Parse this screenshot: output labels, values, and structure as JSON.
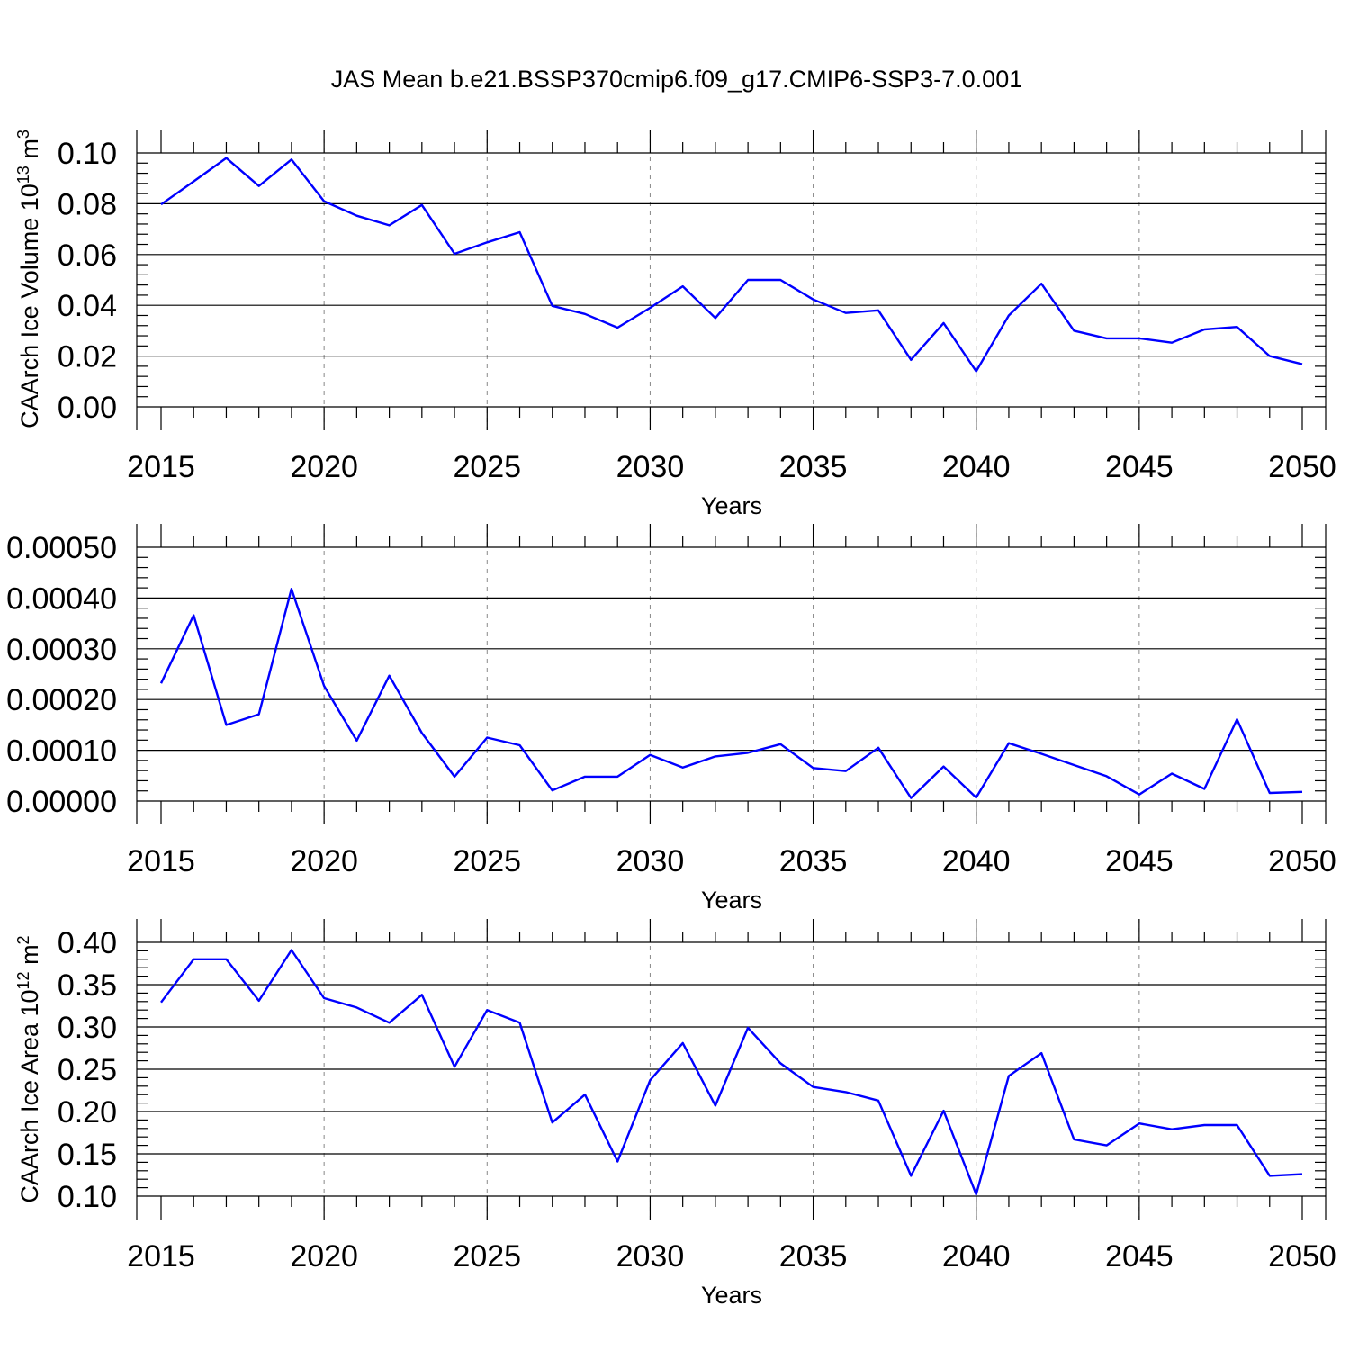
{
  "title": "JAS Mean b.e21.BSSP370cmip6.f09_g17.CMIP6-SSP3-7.0.001",
  "line_color": "#0000ff",
  "chart_data": [
    {
      "type": "line",
      "xlabel": "Years",
      "ylabel": "CAArch Ice Volume 10",
      "ylabel_exp": "13",
      "ylabel_unit": " m",
      "ylabel_unit_exp": "3",
      "xlim": [
        2015,
        2050
      ],
      "ylim": [
        0.0,
        0.1
      ],
      "x_ticks": [
        2015,
        2020,
        2025,
        2030,
        2035,
        2040,
        2045,
        2050
      ],
      "x_tick_labels": [
        "2015",
        "2020",
        "2025",
        "2030",
        "2035",
        "2040",
        "2045",
        "2050"
      ],
      "y_ticks": [
        0.0,
        0.02,
        0.04,
        0.06,
        0.08,
        0.1
      ],
      "y_tick_labels": [
        "0.00",
        "0.02",
        "0.04",
        "0.06",
        "0.08",
        "0.10"
      ],
      "x": [
        2015,
        2016,
        2017,
        2018,
        2019,
        2020,
        2021,
        2022,
        2023,
        2024,
        2025,
        2026,
        2027,
        2028,
        2029,
        2030,
        2031,
        2032,
        2033,
        2034,
        2035,
        2036,
        2037,
        2038,
        2039,
        2040,
        2041,
        2042,
        2043,
        2044,
        2045,
        2046,
        2047,
        2048,
        2049,
        2050
      ],
      "values": [
        0.0797,
        0.0888,
        0.098,
        0.087,
        0.0974,
        0.081,
        0.0753,
        0.0715,
        0.0795,
        0.0603,
        0.0648,
        0.0688,
        0.0398,
        0.0366,
        0.0312,
        0.039,
        0.0475,
        0.035,
        0.05,
        0.05,
        0.0423,
        0.037,
        0.038,
        0.0185,
        0.033,
        0.014,
        0.036,
        0.0485,
        0.03,
        0.027,
        0.027,
        0.0253,
        0.0305,
        0.0315,
        0.02,
        0.0168
      ],
      "grid": "vertical dashed"
    },
    {
      "type": "line",
      "xlabel": "Years",
      "ylabel": "",
      "xlim": [
        2015,
        2050
      ],
      "ylim": [
        0.0,
        0.0005
      ],
      "x_ticks": [
        2015,
        2020,
        2025,
        2030,
        2035,
        2040,
        2045,
        2050
      ],
      "x_tick_labels": [
        "2015",
        "2020",
        "2025",
        "2030",
        "2035",
        "2040",
        "2045",
        "2050"
      ],
      "y_ticks": [
        0.0,
        0.0001,
        0.0002,
        0.0003,
        0.0004,
        0.0005
      ],
      "y_tick_labels": [
        "0.00000",
        "0.00010",
        "0.00020",
        "0.00030",
        "0.00040",
        "0.00050"
      ],
      "x": [
        2015,
        2016,
        2017,
        2018,
        2019,
        2020,
        2021,
        2022,
        2023,
        2024,
        2025,
        2026,
        2027,
        2028,
        2029,
        2030,
        2031,
        2032,
        2033,
        2034,
        2035,
        2036,
        2037,
        2038,
        2039,
        2040,
        2041,
        2042,
        2043,
        2044,
        2045,
        2046,
        2047,
        2048,
        2049,
        2050
      ],
      "values": [
        0.000232,
        0.000366,
        0.00015,
        0.000171,
        0.000418,
        0.000227,
        0.000119,
        0.000247,
        0.000134,
        4.8e-05,
        0.000125,
        0.00011,
        2.1e-05,
        4.8e-05,
        4.8e-05,
        9.1e-05,
        6.6e-05,
        8.8e-05,
        9.5e-05,
        0.000112,
        6.5e-05,
        5.9e-05,
        0.000105,
        6e-06,
        6.8e-05,
        7e-06,
        0.000114,
        9.3e-05,
        7.1e-05,
        4.9e-05,
        1.3e-05,
        5.4e-05,
        2.4e-05,
        0.000161,
        1.6e-05,
        1.8e-05
      ],
      "grid": "vertical dashed"
    },
    {
      "type": "line",
      "xlabel": "Years",
      "ylabel": "CAArch Ice Area 10",
      "ylabel_exp": "12",
      "ylabel_unit": " m",
      "ylabel_unit_exp": "2",
      "xlim": [
        2015,
        2050
      ],
      "ylim": [
        0.1,
        0.4
      ],
      "x_ticks": [
        2015,
        2020,
        2025,
        2030,
        2035,
        2040,
        2045,
        2050
      ],
      "x_tick_labels": [
        "2015",
        "2020",
        "2025",
        "2030",
        "2035",
        "2040",
        "2045",
        "2050"
      ],
      "y_ticks": [
        0.1,
        0.15,
        0.2,
        0.25,
        0.3,
        0.35,
        0.4
      ],
      "y_tick_labels": [
        "0.10",
        "0.15",
        "0.20",
        "0.25",
        "0.30",
        "0.35",
        "0.40"
      ],
      "x": [
        2015,
        2016,
        2017,
        2018,
        2019,
        2020,
        2021,
        2022,
        2023,
        2024,
        2025,
        2026,
        2027,
        2028,
        2029,
        2030,
        2031,
        2032,
        2033,
        2034,
        2035,
        2036,
        2037,
        2038,
        2039,
        2040,
        2041,
        2042,
        2043,
        2044,
        2045,
        2046,
        2047,
        2048,
        2049,
        2050
      ],
      "values": [
        0.329,
        0.38,
        0.38,
        0.331,
        0.391,
        0.334,
        0.323,
        0.305,
        0.338,
        0.253,
        0.32,
        0.305,
        0.187,
        0.22,
        0.141,
        0.237,
        0.281,
        0.207,
        0.299,
        0.257,
        0.229,
        0.223,
        0.213,
        0.124,
        0.201,
        0.102,
        0.242,
        0.269,
        0.167,
        0.16,
        0.186,
        0.179,
        0.184,
        0.184,
        0.124,
        0.126
      ],
      "grid": "vertical dashed"
    }
  ]
}
